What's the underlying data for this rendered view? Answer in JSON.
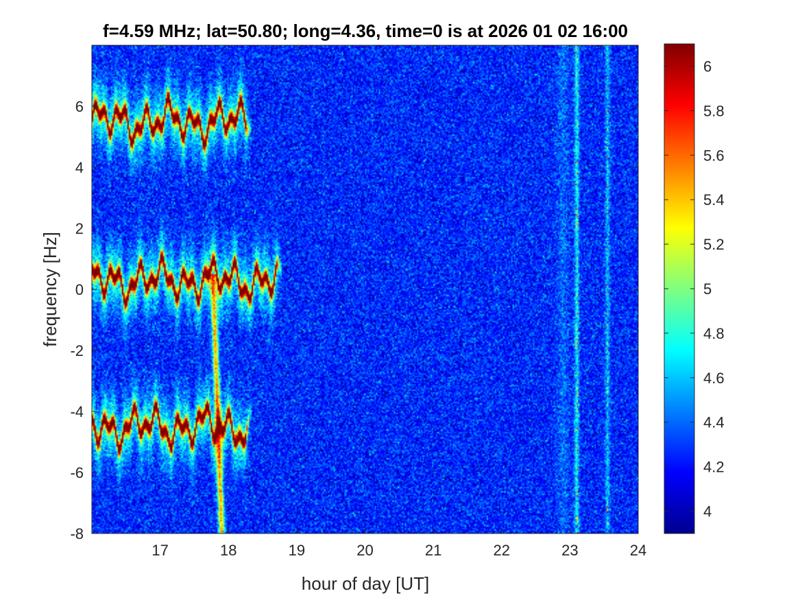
{
  "chart_data": {
    "type": "heatmap",
    "title": "f=4.59 MHz;  lat=50.80; long=4.36, time=0 is at 2026 01 02 16:00",
    "xlabel": "hour of day [UT]",
    "ylabel": "frequency [Hz]",
    "xlim": [
      16,
      24
    ],
    "ylim": [
      -8,
      8
    ],
    "xticks": [
      17,
      18,
      19,
      20,
      21,
      22,
      23,
      24
    ],
    "yticks": [
      -8,
      -6,
      -4,
      -2,
      0,
      2,
      4,
      6
    ],
    "colorbar": {
      "colormap": "jet",
      "range": [
        3.9,
        6.1
      ],
      "ticks": [
        4,
        4.2,
        4.4,
        4.6,
        4.8,
        5,
        5.2,
        5.4,
        5.6,
        5.8,
        6
      ]
    },
    "features": [
      {
        "label": "upper trace",
        "x_start": 16,
        "x_end": 18.25,
        "freq_center": 5.5
      },
      {
        "label": "center trace",
        "x_start": 16,
        "x_end": 18.7,
        "freq_center": 0.3
      },
      {
        "label": "lower trace",
        "x_start": 16,
        "x_end": 18.25,
        "freq_center": -4.5
      },
      {
        "label": "vertical streak",
        "x": 17.9,
        "freq_from": -8,
        "freq_to": 0
      },
      {
        "label": "vertical interference",
        "x": 23.1
      },
      {
        "label": "vertical interference",
        "x": 23.55
      }
    ]
  }
}
